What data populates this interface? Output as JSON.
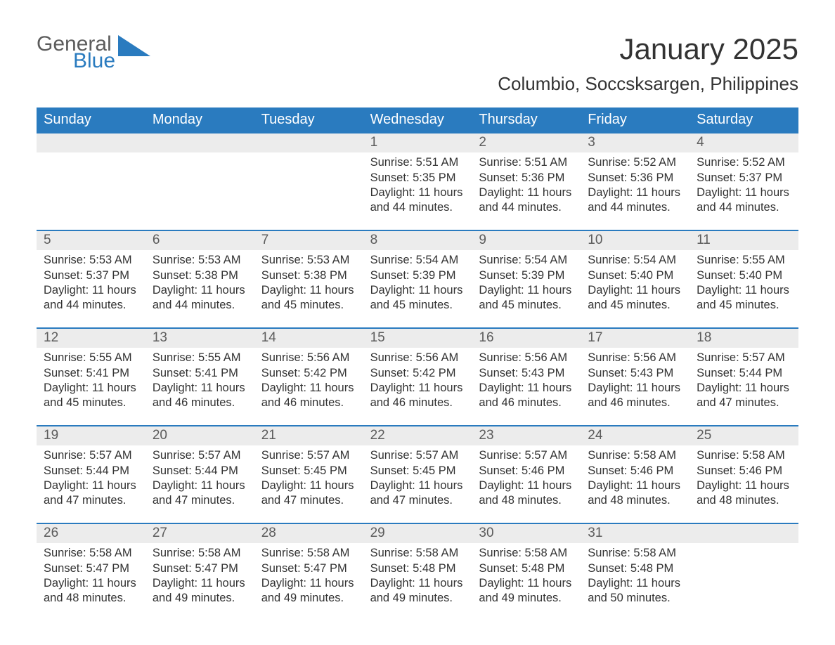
{
  "logo": {
    "top": "General",
    "bottom": "Blue",
    "shape_color": "#2a7bbf",
    "top_color": "#5c5c5c",
    "bottom_color": "#2a7bbf"
  },
  "title": "January 2025",
  "location": "Columbio, Soccsksargen, Philippines",
  "styling": {
    "header_bg": "#2a7bbf",
    "header_text": "#ffffff",
    "date_row_bg": "#ececec",
    "separator_color": "#2a7bbf",
    "body_text_color": "#333333",
    "muted_text_color": "#5c5c5c",
    "page_bg": "#ffffff",
    "weekday_fontsize": 20,
    "title_fontsize": 42,
    "location_fontsize": 26,
    "body_fontsize": 16.5
  },
  "weekdays": [
    "Sunday",
    "Monday",
    "Tuesday",
    "Wednesday",
    "Thursday",
    "Friday",
    "Saturday"
  ],
  "weeks": [
    {
      "days": [
        {
          "date": "",
          "lines": []
        },
        {
          "date": "",
          "lines": []
        },
        {
          "date": "",
          "lines": []
        },
        {
          "date": "1",
          "lines": [
            "Sunrise: 5:51 AM",
            "Sunset: 5:35 PM",
            "Daylight: 11 hours and 44 minutes."
          ]
        },
        {
          "date": "2",
          "lines": [
            "Sunrise: 5:51 AM",
            "Sunset: 5:36 PM",
            "Daylight: 11 hours and 44 minutes."
          ]
        },
        {
          "date": "3",
          "lines": [
            "Sunrise: 5:52 AM",
            "Sunset: 5:36 PM",
            "Daylight: 11 hours and 44 minutes."
          ]
        },
        {
          "date": "4",
          "lines": [
            "Sunrise: 5:52 AM",
            "Sunset: 5:37 PM",
            "Daylight: 11 hours and 44 minutes."
          ]
        }
      ]
    },
    {
      "days": [
        {
          "date": "5",
          "lines": [
            "Sunrise: 5:53 AM",
            "Sunset: 5:37 PM",
            "Daylight: 11 hours and 44 minutes."
          ]
        },
        {
          "date": "6",
          "lines": [
            "Sunrise: 5:53 AM",
            "Sunset: 5:38 PM",
            "Daylight: 11 hours and 44 minutes."
          ]
        },
        {
          "date": "7",
          "lines": [
            "Sunrise: 5:53 AM",
            "Sunset: 5:38 PM",
            "Daylight: 11 hours and 45 minutes."
          ]
        },
        {
          "date": "8",
          "lines": [
            "Sunrise: 5:54 AM",
            "Sunset: 5:39 PM",
            "Daylight: 11 hours and 45 minutes."
          ]
        },
        {
          "date": "9",
          "lines": [
            "Sunrise: 5:54 AM",
            "Sunset: 5:39 PM",
            "Daylight: 11 hours and 45 minutes."
          ]
        },
        {
          "date": "10",
          "lines": [
            "Sunrise: 5:54 AM",
            "Sunset: 5:40 PM",
            "Daylight: 11 hours and 45 minutes."
          ]
        },
        {
          "date": "11",
          "lines": [
            "Sunrise: 5:55 AM",
            "Sunset: 5:40 PM",
            "Daylight: 11 hours and 45 minutes."
          ]
        }
      ]
    },
    {
      "days": [
        {
          "date": "12",
          "lines": [
            "Sunrise: 5:55 AM",
            "Sunset: 5:41 PM",
            "Daylight: 11 hours and 45 minutes."
          ]
        },
        {
          "date": "13",
          "lines": [
            "Sunrise: 5:55 AM",
            "Sunset: 5:41 PM",
            "Daylight: 11 hours and 46 minutes."
          ]
        },
        {
          "date": "14",
          "lines": [
            "Sunrise: 5:56 AM",
            "Sunset: 5:42 PM",
            "Daylight: 11 hours and 46 minutes."
          ]
        },
        {
          "date": "15",
          "lines": [
            "Sunrise: 5:56 AM",
            "Sunset: 5:42 PM",
            "Daylight: 11 hours and 46 minutes."
          ]
        },
        {
          "date": "16",
          "lines": [
            "Sunrise: 5:56 AM",
            "Sunset: 5:43 PM",
            "Daylight: 11 hours and 46 minutes."
          ]
        },
        {
          "date": "17",
          "lines": [
            "Sunrise: 5:56 AM",
            "Sunset: 5:43 PM",
            "Daylight: 11 hours and 46 minutes."
          ]
        },
        {
          "date": "18",
          "lines": [
            "Sunrise: 5:57 AM",
            "Sunset: 5:44 PM",
            "Daylight: 11 hours and 47 minutes."
          ]
        }
      ]
    },
    {
      "days": [
        {
          "date": "19",
          "lines": [
            "Sunrise: 5:57 AM",
            "Sunset: 5:44 PM",
            "Daylight: 11 hours and 47 minutes."
          ]
        },
        {
          "date": "20",
          "lines": [
            "Sunrise: 5:57 AM",
            "Sunset: 5:44 PM",
            "Daylight: 11 hours and 47 minutes."
          ]
        },
        {
          "date": "21",
          "lines": [
            "Sunrise: 5:57 AM",
            "Sunset: 5:45 PM",
            "Daylight: 11 hours and 47 minutes."
          ]
        },
        {
          "date": "22",
          "lines": [
            "Sunrise: 5:57 AM",
            "Sunset: 5:45 PM",
            "Daylight: 11 hours and 47 minutes."
          ]
        },
        {
          "date": "23",
          "lines": [
            "Sunrise: 5:57 AM",
            "Sunset: 5:46 PM",
            "Daylight: 11 hours and 48 minutes."
          ]
        },
        {
          "date": "24",
          "lines": [
            "Sunrise: 5:58 AM",
            "Sunset: 5:46 PM",
            "Daylight: 11 hours and 48 minutes."
          ]
        },
        {
          "date": "25",
          "lines": [
            "Sunrise: 5:58 AM",
            "Sunset: 5:46 PM",
            "Daylight: 11 hours and 48 minutes."
          ]
        }
      ]
    },
    {
      "days": [
        {
          "date": "26",
          "lines": [
            "Sunrise: 5:58 AM",
            "Sunset: 5:47 PM",
            "Daylight: 11 hours and 48 minutes."
          ]
        },
        {
          "date": "27",
          "lines": [
            "Sunrise: 5:58 AM",
            "Sunset: 5:47 PM",
            "Daylight: 11 hours and 49 minutes."
          ]
        },
        {
          "date": "28",
          "lines": [
            "Sunrise: 5:58 AM",
            "Sunset: 5:47 PM",
            "Daylight: 11 hours and 49 minutes."
          ]
        },
        {
          "date": "29",
          "lines": [
            "Sunrise: 5:58 AM",
            "Sunset: 5:48 PM",
            "Daylight: 11 hours and 49 minutes."
          ]
        },
        {
          "date": "30",
          "lines": [
            "Sunrise: 5:58 AM",
            "Sunset: 5:48 PM",
            "Daylight: 11 hours and 49 minutes."
          ]
        },
        {
          "date": "31",
          "lines": [
            "Sunrise: 5:58 AM",
            "Sunset: 5:48 PM",
            "Daylight: 11 hours and 50 minutes."
          ]
        },
        {
          "date": "",
          "lines": []
        }
      ]
    }
  ]
}
